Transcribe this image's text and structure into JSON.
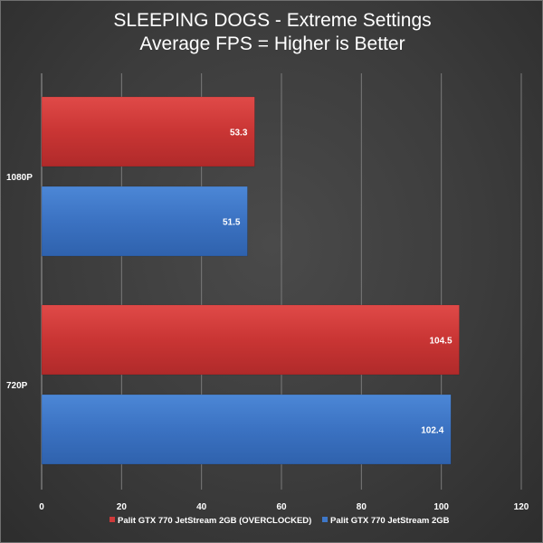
{
  "chart_data": {
    "type": "bar",
    "orientation": "horizontal",
    "title": [
      "SLEEPING DOGS - Extreme Settings",
      "Average FPS = Higher is Better"
    ],
    "categories": [
      "1080P",
      "720P"
    ],
    "series": [
      {
        "name": "Palit GTX 770 JetStream 2GB (OVERCLOCKED)",
        "values": [
          53.3,
          104.5
        ],
        "color": "#cd3a3a"
      },
      {
        "name": "Palit GTX 770 JetStream 2GB",
        "values": [
          51.5,
          102.4
        ],
        "color": "#3e77c8"
      }
    ],
    "xlim": [
      0,
      120
    ],
    "xticks": [
      0,
      20,
      40,
      60,
      80,
      100,
      120
    ],
    "grid": true,
    "legend": "bottom"
  }
}
